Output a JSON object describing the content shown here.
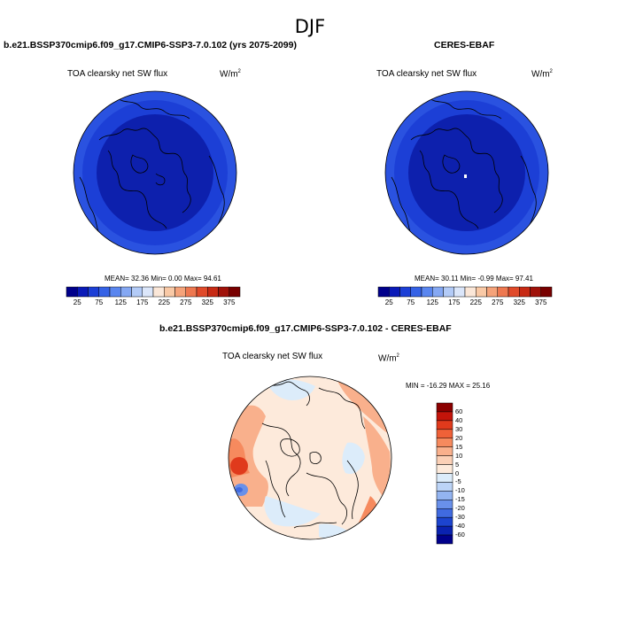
{
  "season": "DJF",
  "panels": [
    {
      "title": "b.e21.BSSP370cmip6.f09_g17.CMIP6-SSP3-7.0.102 (yrs 2075-2099)",
      "variable": "TOA clearsky net SW flux",
      "units": "W/m",
      "units_sup": "2",
      "stats": "MEAN=  32.36  Min=   0.00  Max=  94.61"
    },
    {
      "title": "CERES-EBAF",
      "variable": "TOA clearsky net SW flux",
      "units": "W/m",
      "units_sup": "2",
      "stats": "MEAN=  30.11  Min=  -0.99  Max=  97.41"
    },
    {
      "title": "b.e21.BSSP370cmip6.f09_g17.CMIP6-SSP3-7.0.102 - CERES-EBAF",
      "variable": "TOA clearsky net SW flux",
      "units": "W/m",
      "units_sup": "2",
      "stats": "MIN = -16.29 MAX =  25.16"
    }
  ],
  "chart_data": [
    {
      "type": "heatmap",
      "title": "b.e21.BSSP370cmip6.f09_g17.CMIP6-SSP3-7.0.102 (yrs 2075-2099)",
      "projection": "north polar stereographic",
      "stats": {
        "mean": 32.36,
        "min": 0.0,
        "max": 94.61
      },
      "colorbar": {
        "orientation": "horizontal",
        "levels": [
          25,
          50,
          75,
          100,
          125,
          150,
          175,
          200,
          225,
          250,
          275,
          300,
          325,
          350,
          375
        ],
        "tick_labels": [
          "25",
          "75",
          "125",
          "175",
          "225",
          "275",
          "325",
          "375"
        ],
        "colors": [
          "#00008b",
          "#0a1ab8",
          "#1c3fd6",
          "#3562e6",
          "#5a86ef",
          "#85a8f3",
          "#b3cbf7",
          "#dbe6fa",
          "#fbe7d8",
          "#f9c9a6",
          "#f5a37a",
          "#ee7850",
          "#e04a2a",
          "#c72a14",
          "#a0120a",
          "#780000"
        ]
      }
    },
    {
      "type": "heatmap",
      "title": "CERES-EBAF",
      "projection": "north polar stereographic",
      "stats": {
        "mean": 30.11,
        "min": -0.99,
        "max": 97.41
      },
      "colorbar": {
        "orientation": "horizontal",
        "levels": [
          25,
          50,
          75,
          100,
          125,
          150,
          175,
          200,
          225,
          250,
          275,
          300,
          325,
          350,
          375
        ],
        "tick_labels": [
          "25",
          "75",
          "125",
          "175",
          "225",
          "275",
          "325",
          "375"
        ],
        "colors": [
          "#00008b",
          "#0a1ab8",
          "#1c3fd6",
          "#3562e6",
          "#5a86ef",
          "#85a8f3",
          "#b3cbf7",
          "#dbe6fa",
          "#fbe7d8",
          "#f9c9a6",
          "#f5a37a",
          "#ee7850",
          "#e04a2a",
          "#c72a14",
          "#a0120a",
          "#780000"
        ]
      }
    },
    {
      "type": "heatmap",
      "title": "b.e21.BSSP370cmip6.f09_g17.CMIP6-SSP3-7.0.102 - CERES-EBAF",
      "projection": "north polar stereographic",
      "stats": {
        "min": -16.29,
        "max": 25.16
      },
      "colorbar": {
        "orientation": "vertical",
        "tick_labels": [
          "60",
          "40",
          "30",
          "20",
          "15",
          "10",
          "5",
          "0",
          "-5",
          "-10",
          "-15",
          "-20",
          "-30",
          "-40",
          "-60"
        ],
        "colors": [
          "#8b0000",
          "#c4140a",
          "#e03a1c",
          "#ef6138",
          "#f68a5e",
          "#f9b08c",
          "#fbd0b6",
          "#fdeadb",
          "#dcecfa",
          "#bcd4f7",
          "#93b4f1",
          "#6990ea",
          "#406ae0",
          "#1c44cf",
          "#0a22b0",
          "#00008b"
        ]
      }
    }
  ]
}
